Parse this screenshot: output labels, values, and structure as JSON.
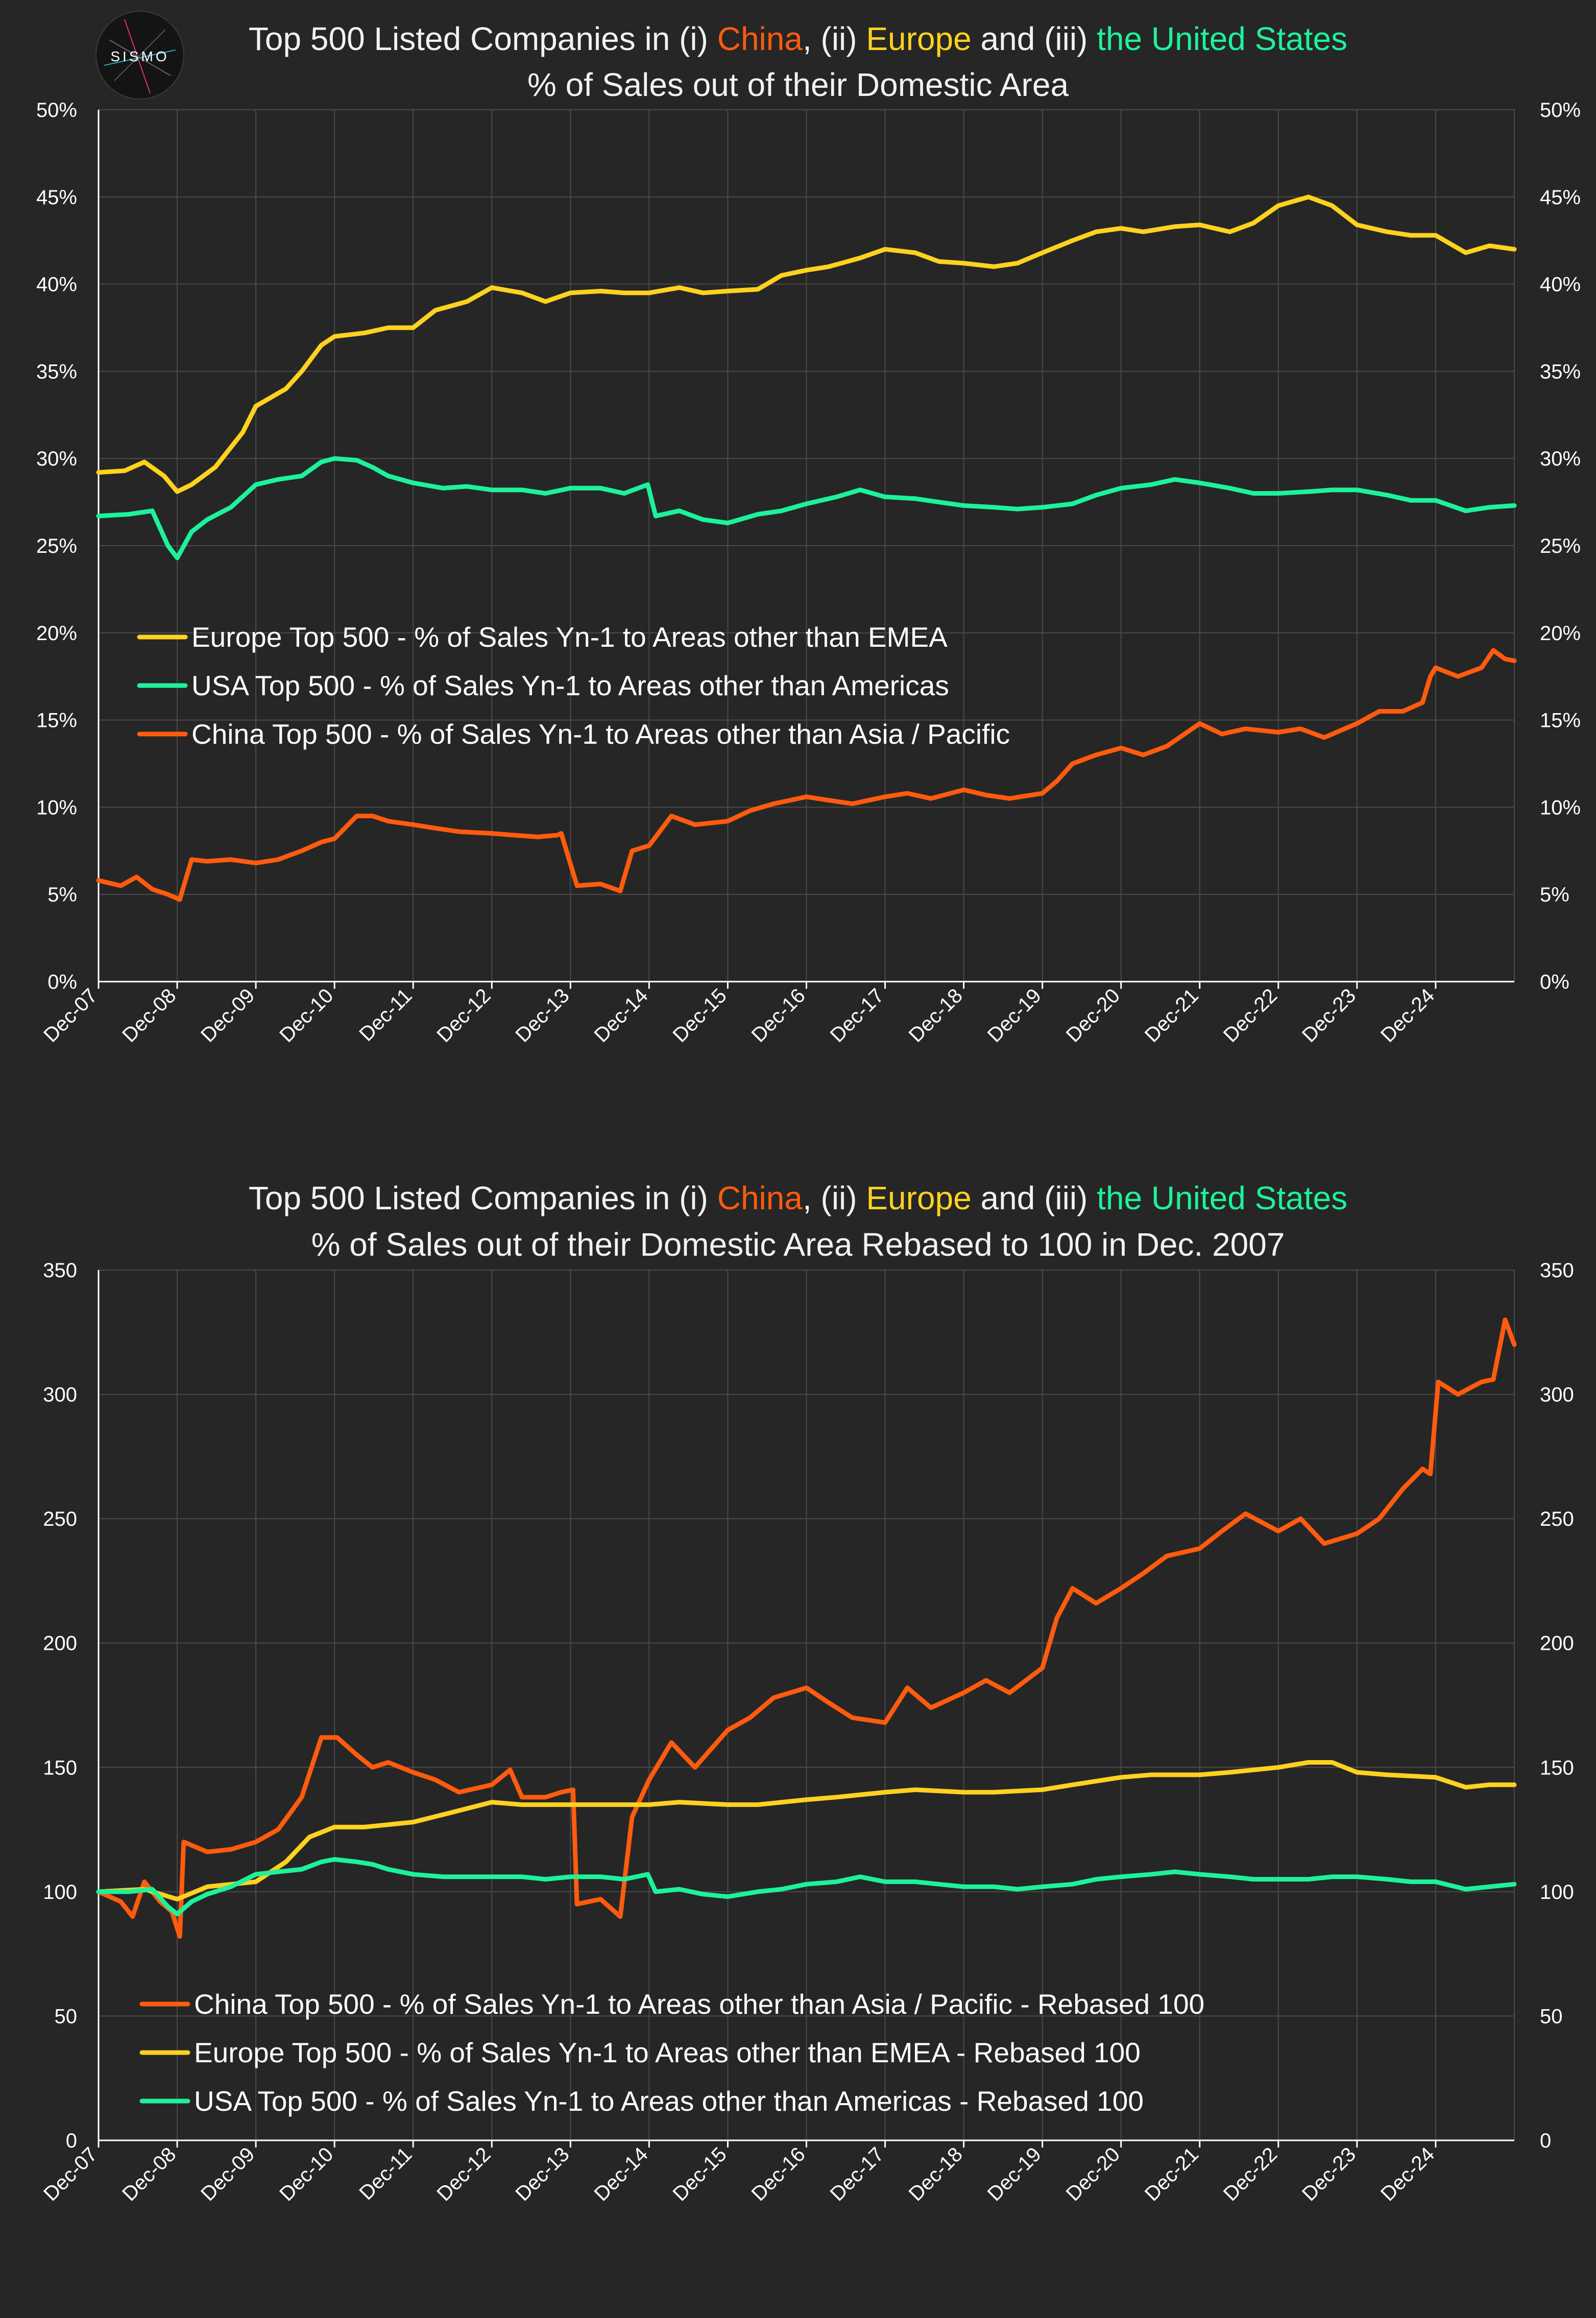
{
  "logo": {
    "text": "SISMO",
    "icon": "sismo-logo-icon"
  },
  "colors": {
    "china": "#FF5B0F",
    "europe": "#FFD21F",
    "usa": "#1DF29A",
    "background": "#262626",
    "grid": "#4a4a4a",
    "text": "#FFFFFF"
  },
  "chart_data": [
    {
      "type": "line",
      "title": {
        "prefix": "Top 500 Listed Companies in (i) ",
        "china": "China",
        "sep1": ", (ii) ",
        "europe": "Europe",
        "sep2": " and (iii) ",
        "usa": "the United States"
      },
      "subtitle": "% of Sales out of their Domestic Area",
      "ylim": [
        0,
        50
      ],
      "yticks": [
        0,
        5,
        10,
        15,
        20,
        25,
        30,
        35,
        40,
        45,
        50
      ],
      "ytick_labels": [
        "0%",
        "5%",
        "10%",
        "15%",
        "20%",
        "25%",
        "30%",
        "35%",
        "40%",
        "45%",
        "50%"
      ],
      "xlim": [
        2007.917,
        2025.917
      ],
      "x_categories": [
        "Dec-07",
        "Dec-08",
        "Dec-09",
        "Dec-10",
        "Dec-11",
        "Dec-12",
        "Dec-13",
        "Dec-14",
        "Dec-15",
        "Dec-16",
        "Dec-17",
        "Dec-18",
        "Dec-19",
        "Dec-20",
        "Dec-21",
        "Dec-22",
        "Dec-23",
        "Dec-24"
      ],
      "series": [
        {
          "key": "europe",
          "name": "Europe Top 500 - % of Sales Yn-1 to Areas other than EMEA",
          "x": [
            2007.917,
            2008.25,
            2008.5,
            2008.75,
            2008.917,
            2009.1,
            2009.4,
            2009.75,
            2009.917,
            2010.3,
            2010.5,
            2010.75,
            2010.917,
            2011.3,
            2011.6,
            2011.917,
            2012.2,
            2012.6,
            2012.917,
            2013.3,
            2013.6,
            2013.917,
            2014.3,
            2014.6,
            2014.917,
            2015.3,
            2015.6,
            2015.917,
            2016.3,
            2016.6,
            2016.917,
            2017.2,
            2017.6,
            2017.917,
            2018.3,
            2018.6,
            2018.917,
            2019.3,
            2019.6,
            2019.917,
            2020.3,
            2020.6,
            2020.917,
            2021.2,
            2021.6,
            2021.917,
            2022.3,
            2022.6,
            2022.917,
            2023.3,
            2023.6,
            2023.917,
            2024.3,
            2024.6,
            2024.917,
            2025.3,
            2025.6,
            2025.917
          ],
          "values": [
            29.2,
            29.3,
            29.8,
            29.0,
            28.1,
            28.5,
            29.5,
            31.5,
            33.0,
            34.0,
            35.0,
            36.5,
            37.0,
            37.2,
            37.5,
            37.5,
            38.5,
            39.0,
            39.8,
            39.5,
            39.0,
            39.5,
            39.6,
            39.5,
            39.5,
            39.8,
            39.5,
            39.6,
            39.7,
            40.5,
            40.8,
            41.0,
            41.5,
            42.0,
            41.8,
            41.3,
            41.2,
            41.0,
            41.2,
            41.8,
            42.5,
            43.0,
            43.2,
            43.0,
            43.3,
            43.4,
            43.0,
            43.5,
            44.5,
            45.0,
            44.5,
            43.4,
            43.0,
            42.8,
            42.8,
            41.8,
            42.2,
            42.0
          ]
        },
        {
          "key": "usa",
          "name": "USA Top 500 - % of Sales Yn-1 to Areas other than Americas",
          "x": [
            2007.917,
            2008.3,
            2008.6,
            2008.8,
            2008.917,
            2009.1,
            2009.3,
            2009.6,
            2009.917,
            2010.2,
            2010.5,
            2010.75,
            2010.917,
            2011.2,
            2011.4,
            2011.6,
            2011.917,
            2012.3,
            2012.6,
            2012.917,
            2013.3,
            2013.6,
            2013.917,
            2014.3,
            2014.6,
            2014.9,
            2015.0,
            2015.3,
            2015.6,
            2015.917,
            2016.3,
            2016.6,
            2016.917,
            2017.3,
            2017.6,
            2017.917,
            2018.3,
            2018.6,
            2018.917,
            2019.3,
            2019.6,
            2019.917,
            2020.3,
            2020.6,
            2020.917,
            2021.3,
            2021.6,
            2021.917,
            2022.3,
            2022.6,
            2022.917,
            2023.3,
            2023.6,
            2023.917,
            2024.3,
            2024.6,
            2024.917,
            2025.3,
            2025.6,
            2025.917
          ],
          "values": [
            26.7,
            26.8,
            27.0,
            25.0,
            24.3,
            25.8,
            26.5,
            27.2,
            28.5,
            28.8,
            29.0,
            29.8,
            30.0,
            29.9,
            29.5,
            29.0,
            28.6,
            28.3,
            28.4,
            28.2,
            28.2,
            28.0,
            28.3,
            28.3,
            28.0,
            28.5,
            26.7,
            27.0,
            26.5,
            26.3,
            26.8,
            27.0,
            27.4,
            27.8,
            28.2,
            27.8,
            27.7,
            27.5,
            27.3,
            27.2,
            27.1,
            27.2,
            27.4,
            27.9,
            28.3,
            28.5,
            28.8,
            28.6,
            28.3,
            28.0,
            28.0,
            28.1,
            28.2,
            28.2,
            27.9,
            27.6,
            27.6,
            27.0,
            27.2,
            27.3
          ]
        },
        {
          "key": "china",
          "name": "China Top 500 - % of Sales Yn-1 to Areas other than Asia / Pacific",
          "x": [
            2007.917,
            2008.2,
            2008.4,
            2008.6,
            2008.8,
            2008.95,
            2009.1,
            2009.3,
            2009.6,
            2009.917,
            2010.2,
            2010.5,
            2010.75,
            2010.917,
            2011.2,
            2011.4,
            2011.6,
            2011.917,
            2012.2,
            2012.5,
            2012.917,
            2013.2,
            2013.5,
            2013.75,
            2013.8,
            2014.0,
            2014.3,
            2014.55,
            2014.7,
            2014.917,
            2015.2,
            2015.5,
            2015.917,
            2016.2,
            2016.5,
            2016.917,
            2017.2,
            2017.5,
            2017.917,
            2018.2,
            2018.5,
            2018.917,
            2019.2,
            2019.5,
            2019.917,
            2020.1,
            2020.3,
            2020.6,
            2020.917,
            2021.2,
            2021.5,
            2021.917,
            2022.2,
            2022.5,
            2022.917,
            2023.2,
            2023.5,
            2023.917,
            2024.2,
            2024.5,
            2024.75,
            2024.85,
            2024.917,
            2025.2,
            2025.5,
            2025.65,
            2025.8,
            2025.917
          ],
          "values": [
            5.8,
            5.5,
            6.0,
            5.3,
            5.0,
            4.7,
            7.0,
            6.9,
            7.0,
            6.8,
            7.0,
            7.5,
            8.0,
            8.2,
            9.5,
            9.5,
            9.2,
            9.0,
            8.8,
            8.6,
            8.5,
            8.4,
            8.3,
            8.4,
            8.5,
            5.5,
            5.6,
            5.2,
            7.5,
            7.8,
            9.5,
            9.0,
            9.2,
            9.8,
            10.2,
            10.6,
            10.4,
            10.2,
            10.6,
            10.8,
            10.5,
            11.0,
            10.7,
            10.5,
            10.8,
            11.5,
            12.5,
            13.0,
            13.4,
            13.0,
            13.5,
            14.8,
            14.2,
            14.5,
            14.3,
            14.5,
            14.0,
            14.8,
            15.5,
            15.5,
            16.0,
            17.5,
            18.0,
            17.5,
            18.0,
            19.0,
            18.5,
            18.4
          ]
        }
      ]
    },
    {
      "type": "line",
      "title": {
        "prefix": "Top 500 Listed Companies in (i) ",
        "china": "China",
        "sep1": ", (ii) ",
        "europe": "Europe",
        "sep2": " and (iii) ",
        "usa": "the United States"
      },
      "subtitle": "% of Sales out of their Domestic Area Rebased to 100 in Dec. 2007",
      "ylim": [
        0,
        350
      ],
      "yticks": [
        0,
        50,
        100,
        150,
        200,
        250,
        300,
        350
      ],
      "ytick_labels": [
        "0",
        "50",
        "100",
        "150",
        "200",
        "250",
        "300",
        "350"
      ],
      "xlim": [
        2007.917,
        2025.917
      ],
      "x_categories": [
        "Dec-07",
        "Dec-08",
        "Dec-09",
        "Dec-10",
        "Dec-11",
        "Dec-12",
        "Dec-13",
        "Dec-14",
        "Dec-15",
        "Dec-16",
        "Dec-17",
        "Dec-18",
        "Dec-19",
        "Dec-20",
        "Dec-21",
        "Dec-22",
        "Dec-23",
        "Dec-24"
      ],
      "series": [
        {
          "key": "china",
          "name": "China Top 500 - % of Sales Yn-1 to Areas other than Asia / Pacific - Rebased 100",
          "x": [
            2007.917,
            2008.2,
            2008.35,
            2008.5,
            2008.7,
            2008.85,
            2008.95,
            2009.0,
            2009.3,
            2009.6,
            2009.917,
            2010.2,
            2010.5,
            2010.75,
            2010.95,
            2011.2,
            2011.4,
            2011.6,
            2011.917,
            2012.2,
            2012.5,
            2012.917,
            2013.15,
            2013.3,
            2013.6,
            2013.8,
            2013.95,
            2014.0,
            2014.3,
            2014.55,
            2014.7,
            2014.917,
            2015.2,
            2015.5,
            2015.917,
            2016.2,
            2016.5,
            2016.917,
            2017.2,
            2017.5,
            2017.917,
            2018.2,
            2018.5,
            2018.917,
            2019.2,
            2019.5,
            2019.917,
            2020.1,
            2020.3,
            2020.6,
            2020.917,
            2021.2,
            2021.5,
            2021.917,
            2022.2,
            2022.5,
            2022.917,
            2023.2,
            2023.5,
            2023.917,
            2024.2,
            2024.5,
            2024.75,
            2024.85,
            2024.95,
            2025.2,
            2025.5,
            2025.65,
            2025.8,
            2025.917
          ],
          "values": [
            100,
            96,
            90,
            104,
            96,
            92,
            82,
            120,
            116,
            117,
            120,
            125,
            138,
            162,
            162,
            155,
            150,
            152,
            148,
            145,
            140,
            143,
            149,
            138,
            138,
            140,
            141,
            95,
            97,
            90,
            130,
            145,
            160,
            150,
            165,
            170,
            178,
            182,
            176,
            170,
            168,
            182,
            174,
            180,
            185,
            180,
            190,
            210,
            222,
            216,
            222,
            228,
            235,
            238,
            245,
            252,
            245,
            250,
            240,
            244,
            250,
            262,
            270,
            268,
            305,
            300,
            305,
            306,
            330,
            320
          ]
        },
        {
          "key": "europe",
          "name": "Europe Top 500 - % of Sales Yn-1 to Areas other than EMEA - Rebased 100",
          "x": [
            2007.917,
            2008.5,
            2008.917,
            2009.3,
            2009.917,
            2010.3,
            2010.6,
            2010.917,
            2011.3,
            2011.917,
            2012.3,
            2012.917,
            2013.3,
            2013.917,
            2014.3,
            2014.917,
            2015.3,
            2015.917,
            2016.3,
            2016.917,
            2017.3,
            2017.917,
            2018.3,
            2018.917,
            2019.3,
            2019.917,
            2020.3,
            2020.917,
            2021.3,
            2021.917,
            2022.3,
            2022.917,
            2023.3,
            2023.6,
            2023.917,
            2024.3,
            2024.917,
            2025.3,
            2025.6,
            2025.917
          ],
          "values": [
            100,
            101,
            97,
            102,
            104,
            112,
            122,
            126,
            126,
            128,
            131,
            136,
            135,
            135,
            135,
            135,
            136,
            135,
            135,
            137,
            138,
            140,
            141,
            140,
            140,
            141,
            143,
            146,
            147,
            147,
            148,
            150,
            152,
            152,
            148,
            147,
            146,
            142,
            143,
            143
          ]
        },
        {
          "key": "usa",
          "name": "USA Top 500 - % of Sales Yn-1 to Areas other than Americas - Rebased 100",
          "x": [
            2007.917,
            2008.3,
            2008.6,
            2008.8,
            2008.917,
            2009.1,
            2009.3,
            2009.6,
            2009.917,
            2010.2,
            2010.5,
            2010.75,
            2010.917,
            2011.2,
            2011.4,
            2011.6,
            2011.917,
            2012.3,
            2012.6,
            2012.917,
            2013.3,
            2013.6,
            2013.917,
            2014.3,
            2014.6,
            2014.9,
            2015.0,
            2015.3,
            2015.6,
            2015.917,
            2016.3,
            2016.6,
            2016.917,
            2017.3,
            2017.6,
            2017.917,
            2018.3,
            2018.6,
            2018.917,
            2019.3,
            2019.6,
            2019.917,
            2020.3,
            2020.6,
            2020.917,
            2021.3,
            2021.6,
            2021.917,
            2022.3,
            2022.6,
            2022.917,
            2023.3,
            2023.6,
            2023.917,
            2024.3,
            2024.6,
            2024.917,
            2025.3,
            2025.6,
            2025.917
          ],
          "values": [
            100,
            100,
            101,
            94,
            91,
            96,
            99,
            102,
            107,
            108,
            109,
            112,
            113,
            112,
            111,
            109,
            107,
            106,
            106,
            106,
            106,
            105,
            106,
            106,
            105,
            107,
            100,
            101,
            99,
            98,
            100,
            101,
            103,
            104,
            106,
            104,
            104,
            103,
            102,
            102,
            101,
            102,
            103,
            105,
            106,
            107,
            108,
            107,
            106,
            105,
            105,
            105,
            106,
            106,
            105,
            104,
            104,
            101,
            102,
            103
          ]
        }
      ]
    }
  ]
}
